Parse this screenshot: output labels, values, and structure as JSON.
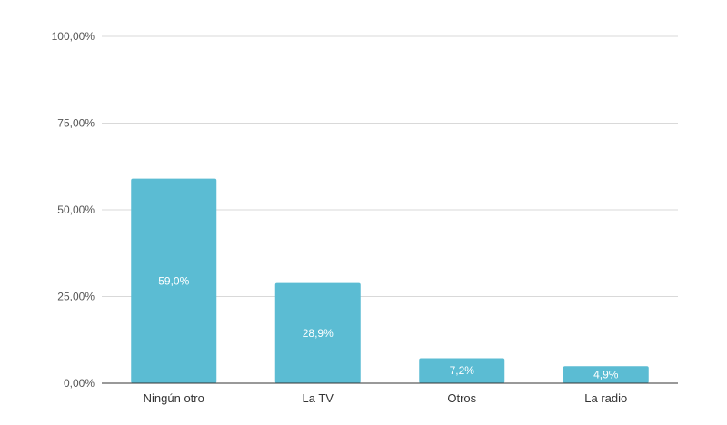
{
  "chart_data": {
    "type": "bar",
    "categories": [
      "Ningún otro",
      "La TV",
      "Otros",
      "La radio"
    ],
    "values": [
      59.0,
      28.9,
      7.2,
      4.9
    ],
    "data_labels": [
      "59,0%",
      "28,9%",
      "7,2%",
      "4,9%"
    ],
    "ylim": [
      0,
      100
    ],
    "yticks": [
      0,
      25,
      50,
      75,
      100
    ],
    "ytick_labels": [
      "0,00%",
      "25,00%",
      "50,00%",
      "75,00%",
      "100,00%"
    ],
    "grid": true,
    "bar_color": "#5bbcd3",
    "title": "",
    "xlabel": "",
    "ylabel": ""
  }
}
